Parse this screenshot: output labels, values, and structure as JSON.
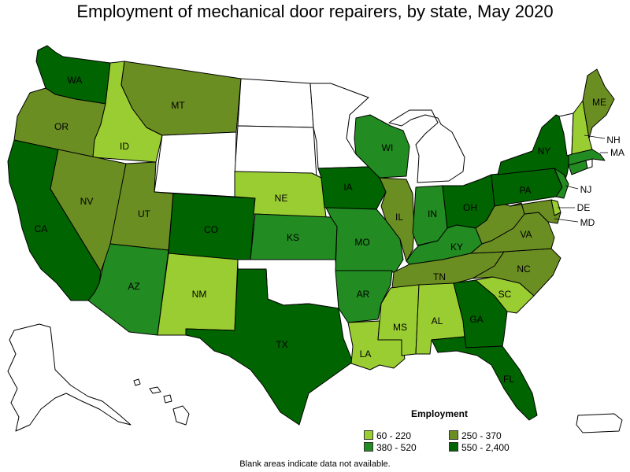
{
  "title": "Employment of mechanical door repairers, by state, May 2020",
  "footnote": "Blank areas indicate data not available.",
  "legend": {
    "title": "Employment",
    "items": [
      {
        "label": "60 - 220",
        "color": "#9acd32"
      },
      {
        "label": "250 - 370",
        "color": "#6b8e23"
      },
      {
        "label": "380 - 520",
        "color": "#228b22"
      },
      {
        "label": "550 - 2,400",
        "color": "#006400"
      }
    ]
  },
  "colors": {
    "no_data": "#ffffff",
    "border": "#000000"
  },
  "states": {
    "WA": {
      "label": "WA",
      "class": 3
    },
    "OR": {
      "label": "OR",
      "class": 1
    },
    "CA": {
      "label": "CA",
      "class": 3
    },
    "ID": {
      "label": "ID",
      "class": 0
    },
    "NV": {
      "label": "NV",
      "class": 1
    },
    "MT": {
      "label": "MT",
      "class": 1
    },
    "UT": {
      "label": "UT",
      "class": 1
    },
    "AZ": {
      "label": "AZ",
      "class": 2
    },
    "CO": {
      "label": "CO",
      "class": 3
    },
    "NM": {
      "label": "NM",
      "class": 0
    },
    "NE": {
      "label": "NE",
      "class": 0
    },
    "KS": {
      "label": "KS",
      "class": 2
    },
    "TX": {
      "label": "TX",
      "class": 3
    },
    "IA": {
      "label": "IA",
      "class": 3
    },
    "MO": {
      "label": "MO",
      "class": 2
    },
    "AR": {
      "label": "AR",
      "class": 2
    },
    "LA": {
      "label": "LA",
      "class": 0
    },
    "WI": {
      "label": "WI",
      "class": 2
    },
    "IL": {
      "label": "IL",
      "class": 1
    },
    "IN": {
      "label": "IN",
      "class": 2
    },
    "OH": {
      "label": "OH",
      "class": 3
    },
    "KY": {
      "label": "KY",
      "class": 2
    },
    "TN": {
      "label": "TN",
      "class": 1
    },
    "MS": {
      "label": "MS",
      "class": 0
    },
    "AL": {
      "label": "AL",
      "class": 0
    },
    "GA": {
      "label": "GA",
      "class": 3
    },
    "FL": {
      "label": "FL",
      "class": 3
    },
    "SC": {
      "label": "SC",
      "class": 0
    },
    "NC": {
      "label": "NC",
      "class": 1
    },
    "VA": {
      "label": "VA",
      "class": 1
    },
    "PA": {
      "label": "PA",
      "class": 3
    },
    "NY": {
      "label": "NY",
      "class": 3
    },
    "ME": {
      "label": "ME",
      "class": 1
    },
    "NH": {
      "label": "NH",
      "class": 0
    },
    "MA": {
      "label": "MA",
      "class": 2
    },
    "NJ": {
      "label": "NJ",
      "class": 2
    },
    "DE": {
      "label": "DE",
      "class": 0
    },
    "MD": {
      "label": "MD",
      "class": 1
    },
    "WV": {
      "label": "",
      "class": 1
    },
    "CT": {
      "label": "",
      "class": 2
    },
    "WY": {
      "label": "",
      "class": null
    },
    "ND": {
      "label": "",
      "class": null
    },
    "SD": {
      "label": "",
      "class": null
    },
    "MN": {
      "label": "",
      "class": null
    },
    "MI": {
      "label": "",
      "class": null
    },
    "OK": {
      "label": "",
      "class": null
    },
    "VT": {
      "label": "",
      "class": null
    },
    "RI": {
      "label": "",
      "class": null
    },
    "AK": {
      "label": "",
      "class": null
    },
    "HI": {
      "label": "",
      "class": null
    },
    "PR": {
      "label": "",
      "class": null
    }
  }
}
